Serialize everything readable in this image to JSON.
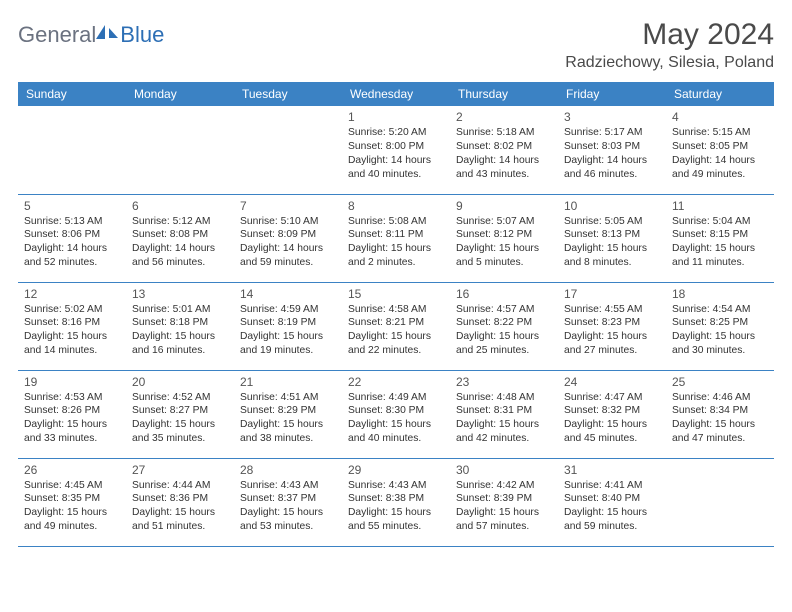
{
  "brand": {
    "part1": "General",
    "part2": "Blue"
  },
  "title": "May 2024",
  "location": "Radziechowy, Silesia, Poland",
  "weekday_headers": [
    "Sunday",
    "Monday",
    "Tuesday",
    "Wednesday",
    "Thursday",
    "Friday",
    "Saturday"
  ],
  "header_bg": "#3b82c4",
  "header_fg": "#ffffff",
  "divider_color": "#3b82c4",
  "start_weekday_index": 3,
  "days": [
    {
      "n": 1,
      "sunrise": "5:20 AM",
      "sunset": "8:00 PM",
      "daylight": "14 hours and 40 minutes."
    },
    {
      "n": 2,
      "sunrise": "5:18 AM",
      "sunset": "8:02 PM",
      "daylight": "14 hours and 43 minutes."
    },
    {
      "n": 3,
      "sunrise": "5:17 AM",
      "sunset": "8:03 PM",
      "daylight": "14 hours and 46 minutes."
    },
    {
      "n": 4,
      "sunrise": "5:15 AM",
      "sunset": "8:05 PM",
      "daylight": "14 hours and 49 minutes."
    },
    {
      "n": 5,
      "sunrise": "5:13 AM",
      "sunset": "8:06 PM",
      "daylight": "14 hours and 52 minutes."
    },
    {
      "n": 6,
      "sunrise": "5:12 AM",
      "sunset": "8:08 PM",
      "daylight": "14 hours and 56 minutes."
    },
    {
      "n": 7,
      "sunrise": "5:10 AM",
      "sunset": "8:09 PM",
      "daylight": "14 hours and 59 minutes."
    },
    {
      "n": 8,
      "sunrise": "5:08 AM",
      "sunset": "8:11 PM",
      "daylight": "15 hours and 2 minutes."
    },
    {
      "n": 9,
      "sunrise": "5:07 AM",
      "sunset": "8:12 PM",
      "daylight": "15 hours and 5 minutes."
    },
    {
      "n": 10,
      "sunrise": "5:05 AM",
      "sunset": "8:13 PM",
      "daylight": "15 hours and 8 minutes."
    },
    {
      "n": 11,
      "sunrise": "5:04 AM",
      "sunset": "8:15 PM",
      "daylight": "15 hours and 11 minutes."
    },
    {
      "n": 12,
      "sunrise": "5:02 AM",
      "sunset": "8:16 PM",
      "daylight": "15 hours and 14 minutes."
    },
    {
      "n": 13,
      "sunrise": "5:01 AM",
      "sunset": "8:18 PM",
      "daylight": "15 hours and 16 minutes."
    },
    {
      "n": 14,
      "sunrise": "4:59 AM",
      "sunset": "8:19 PM",
      "daylight": "15 hours and 19 minutes."
    },
    {
      "n": 15,
      "sunrise": "4:58 AM",
      "sunset": "8:21 PM",
      "daylight": "15 hours and 22 minutes."
    },
    {
      "n": 16,
      "sunrise": "4:57 AM",
      "sunset": "8:22 PM",
      "daylight": "15 hours and 25 minutes."
    },
    {
      "n": 17,
      "sunrise": "4:55 AM",
      "sunset": "8:23 PM",
      "daylight": "15 hours and 27 minutes."
    },
    {
      "n": 18,
      "sunrise": "4:54 AM",
      "sunset": "8:25 PM",
      "daylight": "15 hours and 30 minutes."
    },
    {
      "n": 19,
      "sunrise": "4:53 AM",
      "sunset": "8:26 PM",
      "daylight": "15 hours and 33 minutes."
    },
    {
      "n": 20,
      "sunrise": "4:52 AM",
      "sunset": "8:27 PM",
      "daylight": "15 hours and 35 minutes."
    },
    {
      "n": 21,
      "sunrise": "4:51 AM",
      "sunset": "8:29 PM",
      "daylight": "15 hours and 38 minutes."
    },
    {
      "n": 22,
      "sunrise": "4:49 AM",
      "sunset": "8:30 PM",
      "daylight": "15 hours and 40 minutes."
    },
    {
      "n": 23,
      "sunrise": "4:48 AM",
      "sunset": "8:31 PM",
      "daylight": "15 hours and 42 minutes."
    },
    {
      "n": 24,
      "sunrise": "4:47 AM",
      "sunset": "8:32 PM",
      "daylight": "15 hours and 45 minutes."
    },
    {
      "n": 25,
      "sunrise": "4:46 AM",
      "sunset": "8:34 PM",
      "daylight": "15 hours and 47 minutes."
    },
    {
      "n": 26,
      "sunrise": "4:45 AM",
      "sunset": "8:35 PM",
      "daylight": "15 hours and 49 minutes."
    },
    {
      "n": 27,
      "sunrise": "4:44 AM",
      "sunset": "8:36 PM",
      "daylight": "15 hours and 51 minutes."
    },
    {
      "n": 28,
      "sunrise": "4:43 AM",
      "sunset": "8:37 PM",
      "daylight": "15 hours and 53 minutes."
    },
    {
      "n": 29,
      "sunrise": "4:43 AM",
      "sunset": "8:38 PM",
      "daylight": "15 hours and 55 minutes."
    },
    {
      "n": 30,
      "sunrise": "4:42 AM",
      "sunset": "8:39 PM",
      "daylight": "15 hours and 57 minutes."
    },
    {
      "n": 31,
      "sunrise": "4:41 AM",
      "sunset": "8:40 PM",
      "daylight": "15 hours and 59 minutes."
    }
  ],
  "labels": {
    "sunrise": "Sunrise:",
    "sunset": "Sunset:",
    "daylight": "Daylight:"
  }
}
